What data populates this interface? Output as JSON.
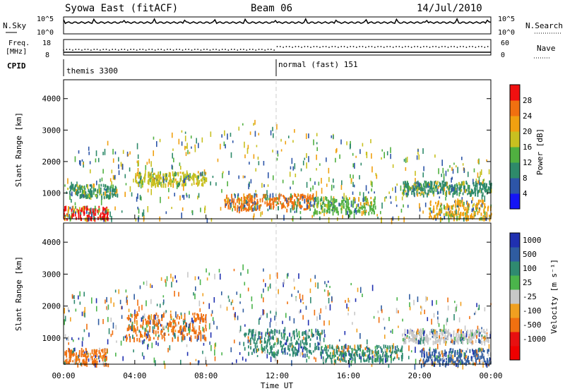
{
  "header": {
    "title_left": "Syowa East (fitACF)",
    "title_center": "Beam 06",
    "title_right": "14/Jul/2010"
  },
  "noise_panel": {
    "left_label": "N.Sky",
    "right_label": "N.Search",
    "left_ticks": [
      "10^5",
      "10^0"
    ],
    "right_ticks": [
      "10^5",
      "10^0"
    ]
  },
  "freq_panel": {
    "left_label_line1": "Freq.",
    "left_label_line2": "[MHz]",
    "right_label": "Nave",
    "left_ticks": [
      "18",
      "8"
    ],
    "right_ticks": [
      "60",
      "0"
    ]
  },
  "cpid_panel": {
    "label": "CPID",
    "segments": [
      "themis 3300",
      "normal (fast) 151"
    ]
  },
  "time_axis": {
    "ticks": [
      "00:00",
      "04:00",
      "08:00",
      "12:00",
      "16:00",
      "20:00",
      "00:00"
    ],
    "xlabel": "Time UT"
  },
  "power_panel": {
    "ylabel": "Slant Range [km]",
    "yticks": [
      "1000",
      "2000",
      "3000",
      "4000"
    ],
    "colorbar_label": "Power [dB]",
    "colorbar_ticks": [
      "4",
      "8",
      "12",
      "16",
      "20",
      "24",
      "28"
    ],
    "colorbar_colors": [
      "#1515f5",
      "#2d55a8",
      "#2e8a6a",
      "#50b040",
      "#c8c020",
      "#f0a010",
      "#f07010",
      "#f01010"
    ]
  },
  "velocity_panel": {
    "ylabel": "Slant Range [km]",
    "yticks": [
      "1000",
      "2000",
      "3000",
      "4000"
    ],
    "colorbar_label": "Velocity [m s⁻¹]",
    "colorbar_ticks": [
      "1000",
      "500",
      "100",
      "25",
      "-25",
      "-100",
      "-500",
      "-1000"
    ],
    "colorbar_colors": [
      "#2030b0",
      "#2f5ca0",
      "#2f8a70",
      "#4bb44b",
      "#c8c8c8",
      "#f0a020",
      "#f07010",
      "#e81010",
      "#f00000"
    ]
  },
  "chart_data": {
    "type": "heatmap",
    "x_range": [
      "00:00",
      "24:00"
    ],
    "y_range_km": [
      180,
      4600
    ],
    "power_bands": [
      {
        "t0": 0.0,
        "t1": 2.5,
        "r0": 200,
        "r1": 600,
        "level": 28
      },
      {
        "t0": 0.2,
        "t1": 3.0,
        "r0": 900,
        "r1": 1300,
        "level": 8
      },
      {
        "t0": 4.0,
        "t1": 8.0,
        "r0": 1300,
        "r1": 1700,
        "level": 16
      },
      {
        "t0": 9.0,
        "t1": 14.0,
        "r0": 500,
        "r1": 1000,
        "level": 24
      },
      {
        "t0": 14.0,
        "t1": 17.5,
        "r0": 400,
        "r1": 900,
        "level": 12
      },
      {
        "t0": 19.0,
        "t1": 24.0,
        "r0": 1000,
        "r1": 1400,
        "level": 8
      },
      {
        "t0": 20.5,
        "t1": 24.0,
        "r0": 200,
        "r1": 800,
        "level": 20
      }
    ],
    "velocity_bands": [
      {
        "t0": 0.0,
        "t1": 2.5,
        "r0": 200,
        "r1": 700,
        "level": -500
      },
      {
        "t0": 3.5,
        "t1": 8.0,
        "r0": 1000,
        "r1": 1800,
        "level": -500
      },
      {
        "t0": 10.0,
        "t1": 14.5,
        "r0": 500,
        "r1": 1300,
        "level": 100
      },
      {
        "t0": 14.5,
        "t1": 19.0,
        "r0": 300,
        "r1": 800,
        "level": 100
      },
      {
        "t0": 19.0,
        "t1": 24.0,
        "r0": 900,
        "r1": 1300,
        "level": -25
      },
      {
        "t0": 20.0,
        "t1": 24.0,
        "r0": 200,
        "r1": 700,
        "level": 500
      }
    ]
  }
}
